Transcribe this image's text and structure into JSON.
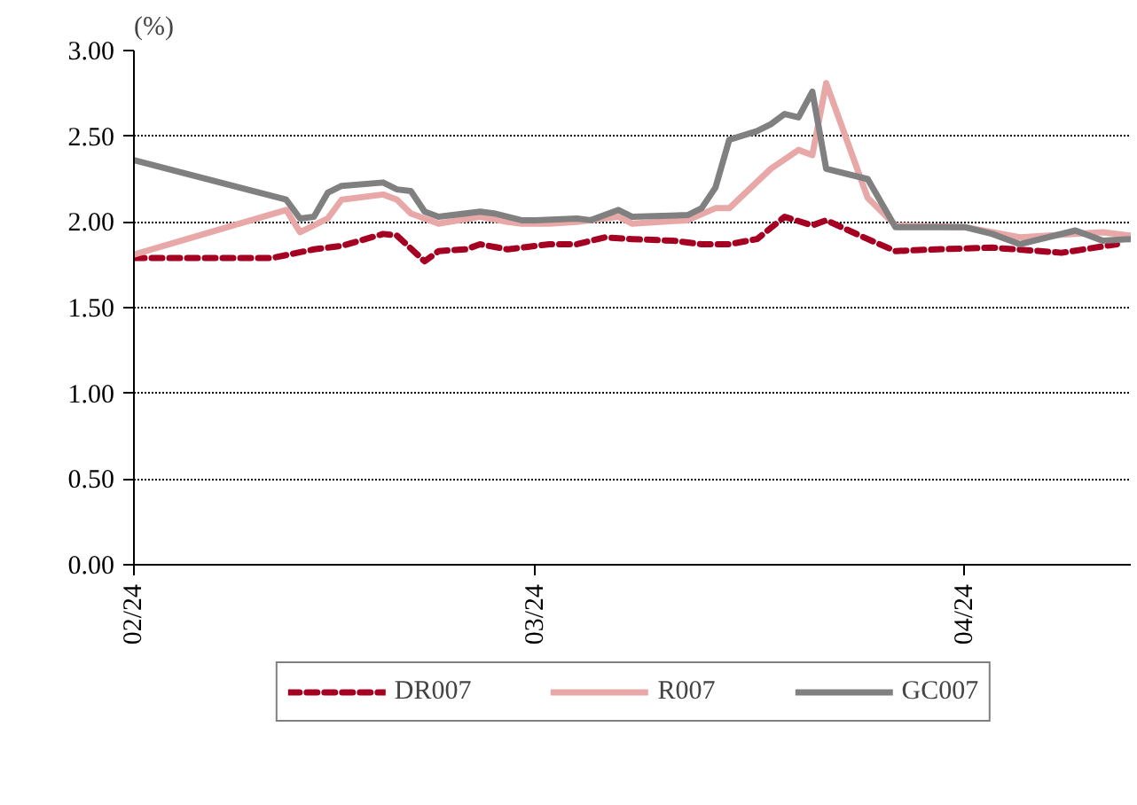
{
  "chart_data": {
    "type": "line",
    "ylabel": "(%)",
    "xlim": [
      "2024-02-01",
      "2024-04-13"
    ],
    "xticks": [
      {
        "value": "2024-02-01",
        "label": "02/24"
      },
      {
        "value": "2024-03-01",
        "label": "03/24"
      },
      {
        "value": "2024-04-01",
        "label": "04/24"
      }
    ],
    "ylim": [
      0,
      3
    ],
    "yticks": [
      {
        "value": 0,
        "label": "0.00"
      },
      {
        "value": 0.5,
        "label": "0.50"
      },
      {
        "value": 1,
        "label": "1.00"
      },
      {
        "value": 1.5,
        "label": "1.50"
      },
      {
        "value": 2,
        "label": "2.00"
      },
      {
        "value": 2.5,
        "label": "2.50"
      },
      {
        "value": 3,
        "label": "3.00"
      }
    ],
    "grid": "y",
    "legend": "bottom",
    "series": [
      {
        "name": "DR007",
        "color": "#a50021",
        "line_style": "dashed",
        "x": [
          "2024-02-01",
          "2024-02-11",
          "2024-02-14",
          "2024-02-16",
          "2024-02-19",
          "2024-02-20",
          "2024-02-22",
          "2024-02-23",
          "2024-02-25",
          "2024-02-26",
          "2024-02-28",
          "2024-03-02",
          "2024-03-04",
          "2024-03-06",
          "2024-03-08",
          "2024-03-11",
          "2024-03-13",
          "2024-03-15",
          "2024-03-17",
          "2024-03-19",
          "2024-03-21",
          "2024-03-22",
          "2024-03-25",
          "2024-03-27",
          "2024-03-30",
          "2024-04-03",
          "2024-04-08",
          "2024-04-12"
        ],
        "values": [
          1.79,
          1.79,
          1.84,
          1.86,
          1.93,
          1.92,
          1.77,
          1.83,
          1.84,
          1.87,
          1.84,
          1.87,
          1.87,
          1.91,
          1.9,
          1.89,
          1.87,
          1.87,
          1.9,
          2.03,
          1.98,
          2.01,
          1.9,
          1.83,
          1.84,
          1.85,
          1.82,
          1.87
        ]
      },
      {
        "name": "R007",
        "color": "#e8a8a8",
        "line_style": "solid",
        "x": [
          "2024-02-01",
          "2024-02-12",
          "2024-02-13",
          "2024-02-15",
          "2024-02-16",
          "2024-02-19",
          "2024-02-20",
          "2024-02-21",
          "2024-02-23",
          "2024-02-26",
          "2024-02-28",
          "2024-02-29",
          "2024-03-02",
          "2024-03-04",
          "2024-03-07",
          "2024-03-08",
          "2024-03-12",
          "2024-03-14",
          "2024-03-15",
          "2024-03-18",
          "2024-03-20",
          "2024-03-21",
          "2024-03-22",
          "2024-03-25",
          "2024-03-27",
          "2024-04-01",
          "2024-04-05",
          "2024-04-09",
          "2024-04-11",
          "2024-04-13"
        ],
        "values": [
          1.81,
          2.07,
          1.94,
          2.02,
          2.13,
          2.16,
          2.13,
          2.05,
          1.99,
          2.03,
          2.0,
          1.99,
          1.99,
          2.0,
          2.03,
          1.99,
          2.01,
          2.08,
          2.08,
          2.31,
          2.42,
          2.39,
          2.81,
          2.14,
          1.98,
          1.97,
          1.91,
          1.93,
          1.94,
          1.92
        ]
      },
      {
        "name": "GC007",
        "color": "#808080",
        "line_style": "solid",
        "x": [
          "2024-02-01",
          "2024-02-12",
          "2024-02-13",
          "2024-02-14",
          "2024-02-15",
          "2024-02-16",
          "2024-02-19",
          "2024-02-20",
          "2024-02-21",
          "2024-02-22",
          "2024-02-23",
          "2024-02-26",
          "2024-02-27",
          "2024-02-29",
          "2024-03-01",
          "2024-03-04",
          "2024-03-05",
          "2024-03-07",
          "2024-03-08",
          "2024-03-12",
          "2024-03-13",
          "2024-03-14",
          "2024-03-15",
          "2024-03-17",
          "2024-03-18",
          "2024-03-19",
          "2024-03-20",
          "2024-03-21",
          "2024-03-22",
          "2024-03-25",
          "2024-03-27",
          "2024-04-01",
          "2024-04-03",
          "2024-04-05",
          "2024-04-09",
          "2024-04-11",
          "2024-04-13"
        ],
        "values": [
          2.36,
          2.13,
          2.02,
          2.03,
          2.17,
          2.21,
          2.23,
          2.19,
          2.18,
          2.06,
          2.03,
          2.06,
          2.05,
          2.01,
          2.01,
          2.02,
          2.01,
          2.07,
          2.03,
          2.04,
          2.08,
          2.2,
          2.48,
          2.53,
          2.57,
          2.63,
          2.61,
          2.76,
          2.31,
          2.25,
          1.97,
          1.97,
          1.93,
          1.87,
          1.95,
          1.89,
          1.9
        ]
      }
    ]
  }
}
